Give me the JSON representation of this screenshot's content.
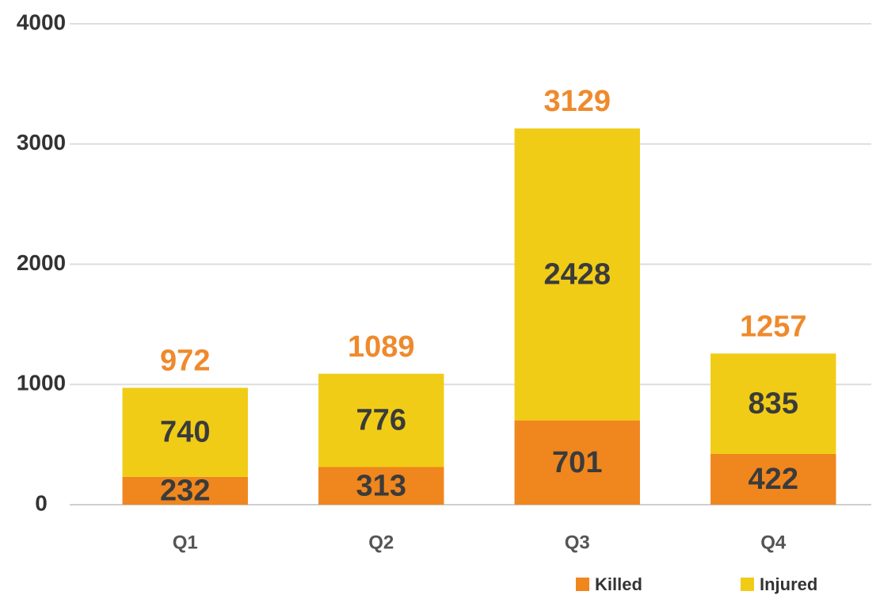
{
  "chart_data": {
    "type": "stacked_bar",
    "categories": [
      "Q1",
      "Q2",
      "Q3",
      "Q4"
    ],
    "series": [
      {
        "name": "Killed",
        "color": "#f0861e",
        "values": [
          232,
          313,
          701,
          422
        ]
      },
      {
        "name": "Injured",
        "color": "#f0cc16",
        "values": [
          740,
          776,
          2428,
          835
        ]
      }
    ],
    "totals": [
      972,
      1089,
      3129,
      1257
    ],
    "ylim": [
      0,
      4000
    ],
    "yticks": [
      0,
      1000,
      2000,
      3000,
      4000
    ],
    "grid": true
  }
}
